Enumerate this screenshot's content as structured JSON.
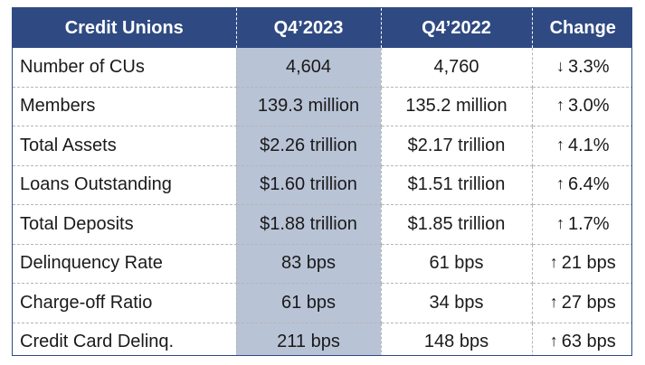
{
  "header": {
    "col0": "Credit Unions",
    "col1": "Q4’2023",
    "col2": "Q4’2022",
    "col3": "Change"
  },
  "colors": {
    "header_bg": "#2f4a82",
    "highlight_col": "#b9c3d6"
  },
  "rows": [
    {
      "label": "Number of CUs",
      "q4_2023": "4,604",
      "q4_2022": "4,760",
      "change_arrow": "↓",
      "change_icon": "down-arrow-icon",
      "change": "3.3%"
    },
    {
      "label": "Members",
      "q4_2023": "139.3 million",
      "q4_2022": "135.2 million",
      "change_arrow": "↑",
      "change_icon": "up-arrow-icon",
      "change": "3.0%"
    },
    {
      "label": "Total Assets",
      "q4_2023": "$2.26 trillion",
      "q4_2022": "$2.17 trillion",
      "change_arrow": "↑",
      "change_icon": "up-arrow-icon",
      "change": "4.1%"
    },
    {
      "label": "Loans Outstanding",
      "q4_2023": "$1.60 trillion",
      "q4_2022": "$1.51 trillion",
      "change_arrow": "↑",
      "change_icon": "up-arrow-icon",
      "change": "6.4%"
    },
    {
      "label": "Total Deposits",
      "q4_2023": "$1.88 trillion",
      "q4_2022": "$1.85 trillion",
      "change_arrow": "↑",
      "change_icon": "up-arrow-icon",
      "change": "1.7%"
    },
    {
      "label": "Delinquency Rate",
      "q4_2023": "83 bps",
      "q4_2022": "61 bps",
      "change_arrow": "↑",
      "change_icon": "up-arrow-icon",
      "change": "21 bps"
    },
    {
      "label": "Charge-off Ratio",
      "q4_2023": "61 bps",
      "q4_2022": "34 bps",
      "change_arrow": "↑",
      "change_icon": "up-arrow-icon",
      "change": "27 bps"
    },
    {
      "label": "Credit Card Delinq.",
      "q4_2023": "211 bps",
      "q4_2022": "148 bps",
      "change_arrow": "↑",
      "change_icon": "up-arrow-icon",
      "change": "63 bps"
    }
  ]
}
